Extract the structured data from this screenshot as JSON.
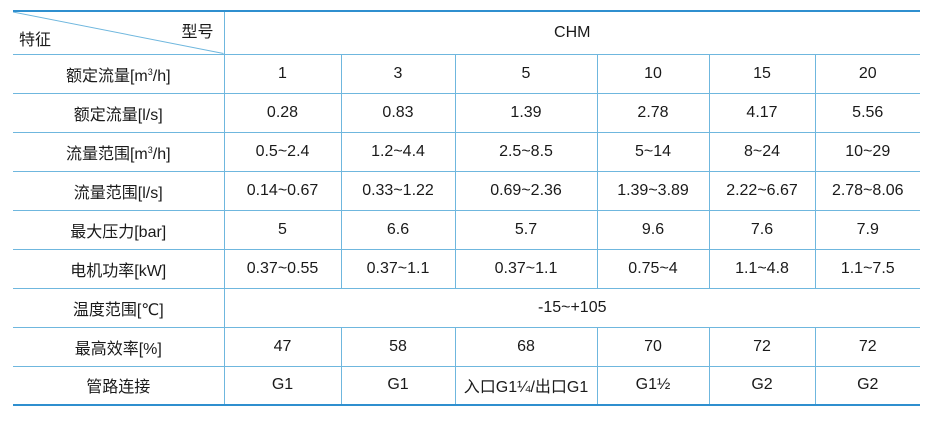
{
  "header": {
    "corner_top": "型号",
    "corner_bottom": "特征",
    "series": "CHM"
  },
  "rows": [
    {
      "label_pre": "额定流量[m",
      "label_sup": "3",
      "label_post": "/h]",
      "values": [
        "1",
        "3",
        "5",
        "10",
        "15",
        "20"
      ]
    },
    {
      "label": "额定流量[l/s]",
      "values": [
        "0.28",
        "0.83",
        "1.39",
        "2.78",
        "4.17",
        "5.56"
      ]
    },
    {
      "label_pre": "流量范围[m",
      "label_sup": "3",
      "label_post": "/h]",
      "values": [
        "0.5~2.4",
        "1.2~4.4",
        "2.5~8.5",
        "5~14",
        "8~24",
        "10~29"
      ]
    },
    {
      "label": "流量范围[l/s]",
      "values": [
        "0.14~0.67",
        "0.33~1.22",
        "0.69~2.36",
        "1.39~3.89",
        "2.22~6.67",
        "2.78~8.06"
      ]
    },
    {
      "label": "最大压力[bar]",
      "values": [
        "5",
        "6.6",
        "5.7",
        "9.6",
        "7.6",
        "7.9"
      ]
    },
    {
      "label": "电机功率[kW]",
      "values": [
        "0.37~0.55",
        "0.37~1.1",
        "0.37~1.1",
        "0.75~4",
        "1.1~4.8",
        "1.1~7.5"
      ]
    },
    {
      "label": "温度范围[℃]",
      "merged_value": "-15~+105"
    },
    {
      "label": "最高效率[%]",
      "values": [
        "47",
        "58",
        "68",
        "70",
        "72",
        "72"
      ]
    },
    {
      "label": "管路连接",
      "values": [
        "G1",
        "G1",
        "入口G1¼/出口G1",
        "G1½",
        "G2",
        "G2"
      ]
    }
  ],
  "colors": {
    "border_strong": "#2f8fcf",
    "border_light": "#6fb7de"
  }
}
